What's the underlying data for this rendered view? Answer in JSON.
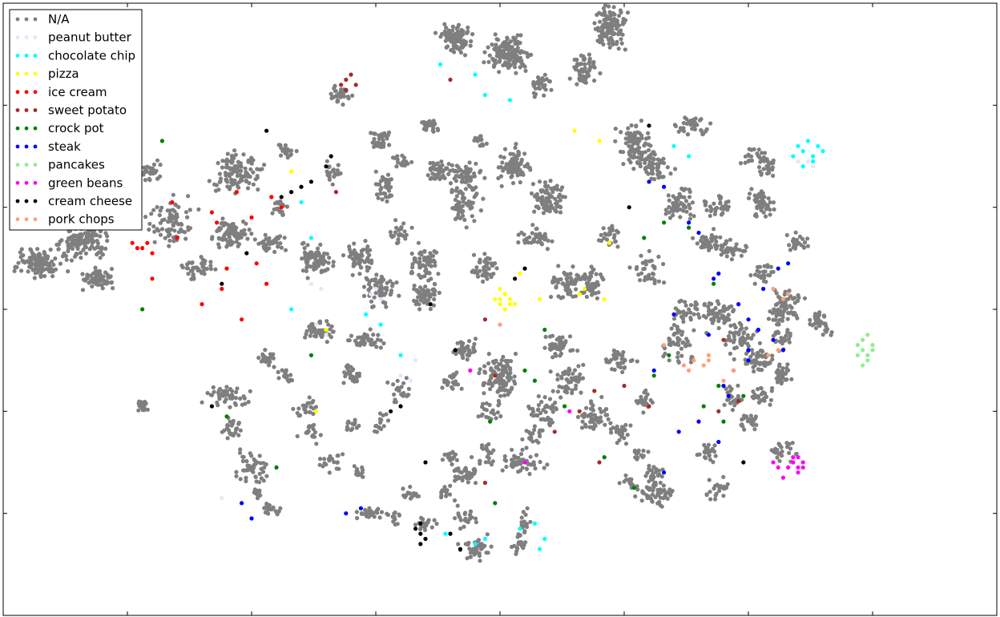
{
  "chart_data": {
    "type": "scatter",
    "title": "",
    "xlabel": "",
    "ylabel": "",
    "xlim": [
      -100,
      100
    ],
    "ylim": [
      -60,
      60
    ],
    "ticks_labeled": false,
    "grid": false,
    "legend_placement": "top-left",
    "background_color": "#7f7f7f",
    "background_label": "N/A",
    "series": [
      {
        "name": "N/A",
        "color": "#7f7f7f",
        "style": "dense background cloud (t-SNE embedding)"
      },
      {
        "name": "peanut butter",
        "color": "#e6e6fa",
        "x": [
          60,
          61,
          62,
          63,
          -38,
          -36,
          -26,
          -25,
          -24,
          -37,
          -35,
          -20,
          -18,
          -56,
          -17
        ],
        "y": [
          29,
          28,
          29,
          28,
          5,
          4,
          3,
          4,
          2,
          -3,
          -5,
          -13,
          -14,
          -37,
          -10
        ]
      },
      {
        "name": "chocolate chip",
        "color": "#00ffff",
        "x": [
          60,
          61,
          62,
          63,
          64,
          65,
          59,
          61,
          63,
          -12,
          -5,
          -3,
          2,
          -40,
          -38,
          -27,
          -24,
          -20,
          -42,
          35,
          38,
          -11,
          4,
          8,
          9,
          7,
          -5,
          -3
        ],
        "y": [
          32,
          31,
          33,
          30,
          32,
          31,
          30,
          28,
          29,
          48,
          46,
          42,
          41,
          21,
          14,
          -1,
          -3,
          -9,
          0,
          32,
          30,
          -44,
          -43,
          -47,
          -45,
          -42,
          -46,
          -45
        ]
      },
      {
        "name": "pizza",
        "color": "#ffff00",
        "x": [
          0,
          1,
          2,
          0,
          1,
          -1,
          2,
          1,
          0,
          4,
          8,
          16,
          17,
          21,
          -42,
          15,
          20,
          -35,
          3,
          22,
          -37
        ],
        "y": [
          2,
          3,
          2,
          1,
          0,
          2,
          1,
          3,
          4,
          7,
          2,
          3,
          4,
          2,
          27,
          35,
          33,
          -4,
          1,
          13,
          -20
        ]
      },
      {
        "name": "ice cream",
        "color": "#ff0000",
        "x": [
          -73,
          -71,
          -70,
          -72,
          -74,
          -46,
          -44,
          -50,
          -58,
          -65,
          -57,
          -55,
          -49,
          -47,
          -60,
          -53,
          -66,
          -70,
          -56,
          -52
        ],
        "y": [
          12,
          13,
          11,
          12,
          13,
          22,
          20,
          18,
          19,
          14,
          17,
          8,
          9,
          5,
          1,
          23,
          21,
          6,
          4,
          -2
        ]
      },
      {
        "name": "sweet potato",
        "color": "#a52a2a",
        "x": [
          -31,
          -32,
          -30,
          -31,
          -29,
          -40,
          -33,
          -10,
          -3,
          -1,
          16,
          20,
          44,
          48,
          45,
          -3,
          25,
          30,
          19,
          11
        ],
        "y": [
          45,
          44,
          46,
          43,
          44,
          24,
          23,
          45,
          -2,
          -13,
          -20,
          -30,
          -20,
          -18,
          -6,
          -34,
          -15,
          -19,
          -16,
          -24
        ]
      },
      {
        "name": "crock pot",
        "color": "#008000",
        "x": [
          -68,
          -72,
          -55,
          -45,
          -38,
          33,
          38,
          29,
          43,
          44,
          49,
          41,
          45,
          31,
          34,
          5,
          7,
          -2,
          13,
          9,
          -1,
          21,
          27
        ],
        "y": [
          33,
          0,
          -21,
          -31,
          -9,
          17,
          16,
          14,
          5,
          -15,
          -17,
          -19,
          -22,
          -13,
          -9,
          -12,
          -14,
          -22,
          -19,
          -4,
          -38,
          -29,
          -35
        ]
      },
      {
        "name": "steak",
        "color": "#0000ff",
        "x": [
          30,
          33,
          38,
          40,
          42,
          35,
          31,
          43,
          44,
          48,
          50,
          52,
          47,
          45,
          53,
          56,
          58,
          50,
          33,
          36,
          40,
          44,
          46,
          50,
          55,
          57,
          -52,
          -50,
          -31,
          -28
        ],
        "y": [
          25,
          24,
          17,
          15,
          -5,
          -1,
          -12,
          6,
          7,
          1,
          -2,
          -4,
          -12,
          -15,
          4,
          8,
          9,
          -10,
          -32,
          -24,
          -22,
          -26,
          -17,
          -8,
          -6,
          -8,
          -38,
          -41,
          -40,
          -39
        ]
      },
      {
        "name": "pancakes",
        "color": "#90ee90",
        "x": [
          72,
          73,
          74,
          75,
          73,
          74,
          72,
          75,
          73,
          74
        ],
        "y": [
          -7,
          -8,
          -9,
          -7,
          -6,
          -10,
          -9,
          -8,
          -11,
          -5
        ]
      },
      {
        "name": "green beans",
        "color": "#ff00ff",
        "x": [
          59,
          60,
          61,
          59,
          60,
          61,
          59,
          60,
          58,
          55,
          56,
          57,
          5,
          14,
          -6
        ],
        "y": [
          -30,
          -31,
          -30,
          -29,
          -32,
          -31,
          -30,
          -29,
          -31,
          -30,
          -31,
          -33,
          -30,
          -20,
          -12
        ]
      },
      {
        "name": "cream cheese",
        "color": "#000000",
        "x": [
          -17,
          -16,
          -15,
          -16,
          -16,
          -10,
          -8,
          -42,
          -44,
          -40,
          -38,
          -58,
          -51,
          -47,
          -14,
          3,
          5,
          30,
          26,
          49,
          -22,
          -20,
          -15,
          -9,
          -34,
          -35,
          -56
        ],
        "y": [
          -43,
          -44,
          -45,
          -42,
          -46,
          -44,
          -47,
          23,
          22,
          24,
          25,
          -19,
          11,
          35,
          1,
          6,
          8,
          36,
          20,
          -30,
          -20,
          -19,
          -30,
          -8,
          30,
          28,
          5
        ]
      },
      {
        "name": "pork chops",
        "color": "#ffa07a",
        "x": [
          37,
          38,
          39,
          41,
          42,
          42,
          33,
          55,
          57,
          58,
          56,
          54,
          47,
          45,
          0
        ],
        "y": [
          -11,
          -12,
          -10,
          -11,
          -9,
          -10,
          -7,
          4,
          2,
          3,
          -8,
          -9,
          -12,
          -14,
          -3
        ]
      }
    ]
  }
}
